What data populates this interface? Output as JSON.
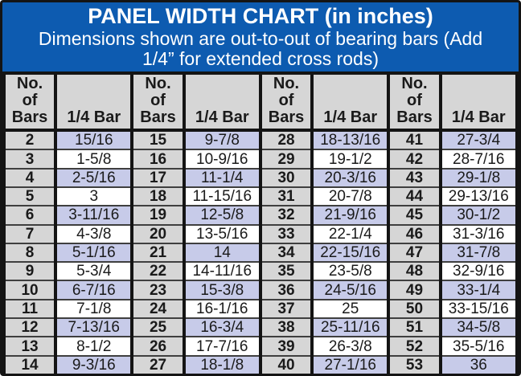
{
  "header": {
    "title": "PANEL WIDTH CHART (in inches)",
    "subtitle": "Dimensions shown are out-to-out of bearing bars (Add 1/4” for extended cross rods)"
  },
  "colors": {
    "banner_blue": "#0d5bb0",
    "header_gray": "#d6d6d6",
    "row_alt_lavender": "#c7cbe9",
    "border_black": "#141414",
    "text_white": "#ffffff",
    "text_black": "#1a1a1a"
  },
  "table": {
    "bars_header": "No. of Bars",
    "value_header": "1/4 Bar",
    "sections": [
      {
        "rows": [
          {
            "bars": "2",
            "width": "15/16"
          },
          {
            "bars": "3",
            "width": "1-5/8"
          },
          {
            "bars": "4",
            "width": "2-5/16"
          },
          {
            "bars": "5",
            "width": "3"
          },
          {
            "bars": "6",
            "width": "3-11/16"
          },
          {
            "bars": "7",
            "width": "4-3/8"
          },
          {
            "bars": "8",
            "width": "5-1/16"
          },
          {
            "bars": "9",
            "width": "5-3/4"
          },
          {
            "bars": "10",
            "width": "6-7/16"
          },
          {
            "bars": "11",
            "width": "7-1/8"
          },
          {
            "bars": "12",
            "width": "7-13/16"
          },
          {
            "bars": "13",
            "width": "8-1/2"
          },
          {
            "bars": "14",
            "width": "9-3/16"
          }
        ]
      },
      {
        "rows": [
          {
            "bars": "15",
            "width": "9-7/8"
          },
          {
            "bars": "16",
            "width": "10-9/16"
          },
          {
            "bars": "17",
            "width": "11-1/4"
          },
          {
            "bars": "18",
            "width": "11-15/16"
          },
          {
            "bars": "19",
            "width": "12-5/8"
          },
          {
            "bars": "20",
            "width": "13-5/16"
          },
          {
            "bars": "21",
            "width": "14"
          },
          {
            "bars": "22",
            "width": "14-11/16"
          },
          {
            "bars": "23",
            "width": "15-3/8"
          },
          {
            "bars": "24",
            "width": "16-1/16"
          },
          {
            "bars": "25",
            "width": "16-3/4"
          },
          {
            "bars": "26",
            "width": "17-7/16"
          },
          {
            "bars": "27",
            "width": "18-1/8"
          }
        ]
      },
      {
        "rows": [
          {
            "bars": "28",
            "width": "18-13/16"
          },
          {
            "bars": "29",
            "width": "19-1/2"
          },
          {
            "bars": "30",
            "width": "20-3/16"
          },
          {
            "bars": "31",
            "width": "20-7/8"
          },
          {
            "bars": "32",
            "width": "21-9/16"
          },
          {
            "bars": "33",
            "width": "22-1/4"
          },
          {
            "bars": "34",
            "width": "22-15/16"
          },
          {
            "bars": "35",
            "width": "23-5/8"
          },
          {
            "bars": "36",
            "width": "24-5/16"
          },
          {
            "bars": "37",
            "width": "25"
          },
          {
            "bars": "38",
            "width": "25-11/16"
          },
          {
            "bars": "39",
            "width": "26-3/8"
          },
          {
            "bars": "40",
            "width": "27-1/16"
          }
        ]
      },
      {
        "rows": [
          {
            "bars": "41",
            "width": "27-3/4"
          },
          {
            "bars": "42",
            "width": "28-7/16"
          },
          {
            "bars": "43",
            "width": "29-1/8"
          },
          {
            "bars": "44",
            "width": "29-13/16"
          },
          {
            "bars": "45",
            "width": "30-1/2"
          },
          {
            "bars": "46",
            "width": "31-3/16"
          },
          {
            "bars": "47",
            "width": "31-7/8"
          },
          {
            "bars": "48",
            "width": "32-9/16"
          },
          {
            "bars": "49",
            "width": "33-1/4"
          },
          {
            "bars": "50",
            "width": "33-15/16"
          },
          {
            "bars": "51",
            "width": "34-5/8"
          },
          {
            "bars": "52",
            "width": "35-5/16"
          },
          {
            "bars": "53",
            "width": "36"
          }
        ]
      }
    ]
  }
}
